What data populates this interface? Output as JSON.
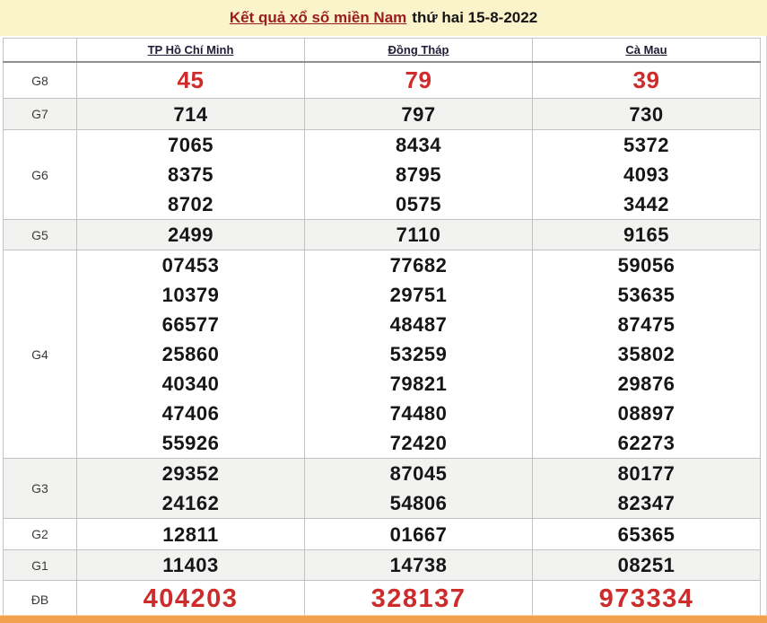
{
  "title": {
    "link_text": "Kết quả xổ số miền Nam",
    "date_text": "thứ hai 15-8-2022"
  },
  "table": {
    "columns": [
      "TP Hồ Chí Minh",
      "Đồng Tháp",
      "Cà Mau"
    ],
    "rows": [
      {
        "label": "G8",
        "highlight": "red",
        "values": [
          [
            "45"
          ],
          [
            "79"
          ],
          [
            "39"
          ]
        ]
      },
      {
        "label": "G7",
        "values": [
          [
            "714"
          ],
          [
            "797"
          ],
          [
            "730"
          ]
        ]
      },
      {
        "label": "G6",
        "values": [
          [
            "7065",
            "8375",
            "8702"
          ],
          [
            "8434",
            "8795",
            "0575"
          ],
          [
            "5372",
            "4093",
            "3442"
          ]
        ]
      },
      {
        "label": "G5",
        "values": [
          [
            "2499"
          ],
          [
            "7110"
          ],
          [
            "9165"
          ]
        ]
      },
      {
        "label": "G4",
        "values": [
          [
            "07453",
            "10379",
            "66577",
            "25860",
            "40340",
            "47406",
            "55926"
          ],
          [
            "77682",
            "29751",
            "48487",
            "53259",
            "79821",
            "74480",
            "72420"
          ],
          [
            "59056",
            "53635",
            "87475",
            "35802",
            "29876",
            "08897",
            "62273"
          ]
        ]
      },
      {
        "label": "G3",
        "values": [
          [
            "29352",
            "24162"
          ],
          [
            "87045",
            "54806"
          ],
          [
            "80177",
            "82347"
          ]
        ]
      },
      {
        "label": "G2",
        "values": [
          [
            "12811"
          ],
          [
            "01667"
          ],
          [
            "65365"
          ]
        ]
      },
      {
        "label": "G1",
        "values": [
          [
            "11403"
          ],
          [
            "14738"
          ],
          [
            "08251"
          ]
        ]
      },
      {
        "label": "ĐB",
        "highlight": "red-large",
        "values": [
          [
            "404203"
          ],
          [
            "328137"
          ],
          [
            "973334"
          ]
        ]
      }
    ]
  },
  "colors": {
    "title_band_bg": "#FBF4CB",
    "title_link": "#9B1C1C",
    "accent_red": "#CE2B2B",
    "stripe_bg": "#F2F2F1",
    "bottom_bar": "#F2A14E"
  }
}
